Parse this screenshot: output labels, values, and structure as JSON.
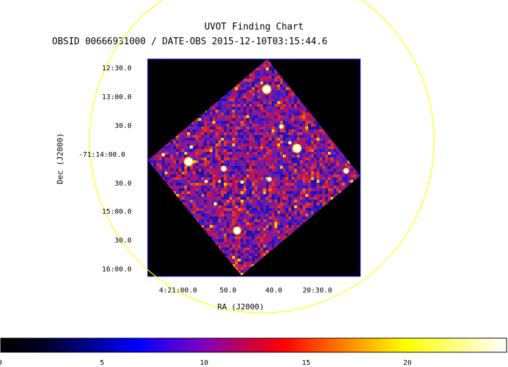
{
  "title": "UVOT Finding Chart",
  "subtitle": "OBSID 00666931000 / DATE-OBS 2015-12-10T03:15:44.6",
  "dec_axis": {
    "label": "Dec (J2000)",
    "ticks": [
      "12:30.0",
      "13:00.0",
      "30.0",
      "-71:14:00.0",
      "30.0",
      "15:00.0",
      "30.0",
      "16:00.0"
    ]
  },
  "ra_axis": {
    "label": "RA (J2000)",
    "ticks": [
      "4:21:00.0",
      "50.0",
      "40.0",
      "20:30.0"
    ]
  },
  "colorbar": {
    "ticks": [
      "0",
      "5",
      "10",
      "15",
      "20"
    ],
    "range": [
      0,
      25
    ],
    "colors": [
      "#000000",
      "#0000ff",
      "#ff0000",
      "#ffff00",
      "#ffffff"
    ]
  },
  "colors": {
    "circle": "#ffff00",
    "frame": "#0000ff",
    "background": "#000000"
  }
}
